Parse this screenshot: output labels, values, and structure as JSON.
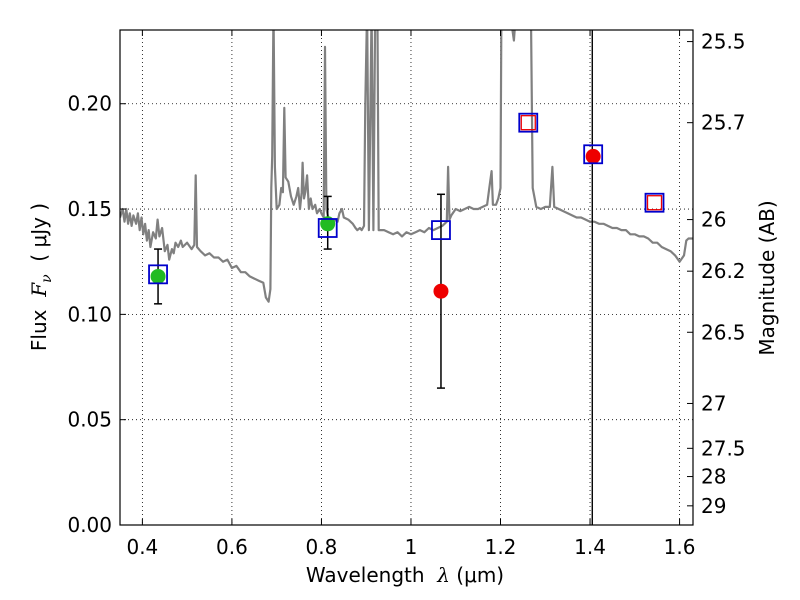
{
  "chart_data": {
    "type": "scatter",
    "xlabel": {
      "prefix": "Wavelength  ",
      "symbol": "λ",
      "unit": " (μm)"
    },
    "ylabel": {
      "prefix": "Flux  ",
      "symbol": "F",
      "sub": "ν",
      "unit": "  ( μJy )"
    },
    "ylabel_right": "Magnitude (AB)",
    "xlim": [
      0.35,
      1.63
    ],
    "ylim": [
      0.0,
      0.235
    ],
    "x_ticks": [
      0.4,
      0.6,
      0.8,
      1.0,
      1.2,
      1.4,
      1.6
    ],
    "x_tick_labels": [
      "0.4",
      "0.6",
      "0.8",
      "1",
      "1.2",
      "1.4",
      "1.6"
    ],
    "y_ticks": [
      0.0,
      0.05,
      0.1,
      0.15,
      0.2
    ],
    "y_tick_labels": [
      "0.00",
      "0.05",
      "0.10",
      "0.15",
      "0.20"
    ],
    "right_ticks": [
      {
        "label": "25.5",
        "flux": 0.2295
      },
      {
        "label": "25.7",
        "flux": 0.191
      },
      {
        "label": "26",
        "flux": 0.145
      },
      {
        "label": "26.2",
        "flux": 0.1205
      },
      {
        "label": "26.5",
        "flux": 0.0915
      },
      {
        "label": "27",
        "flux": 0.0577
      },
      {
        "label": "27.5",
        "flux": 0.0364
      },
      {
        "label": "28",
        "flux": 0.023
      },
      {
        "label": "29",
        "flux": 0.0091
      }
    ],
    "grid": true,
    "vline_x": 1.405,
    "observed_points": [
      {
        "x": 0.435,
        "y": 0.118,
        "yerr_low": 0.105,
        "yerr_high": 0.131,
        "color": "#22bb22"
      },
      {
        "x": 0.814,
        "y": 0.143,
        "yerr_low": 0.131,
        "yerr_high": 0.156,
        "color": "#22bb22"
      },
      {
        "x": 1.067,
        "y": 0.111,
        "yerr_low": 0.065,
        "yerr_high": 0.157,
        "color": "#ee0000"
      },
      {
        "x": 1.407,
        "y": 0.175,
        "color": "#ee0000"
      }
    ],
    "model_points": [
      {
        "x": 0.435,
        "y": 0.119
      },
      {
        "x": 0.814,
        "y": 0.141
      },
      {
        "x": 1.067,
        "y": 0.14
      },
      {
        "x": 1.262,
        "y": 0.191
      },
      {
        "x": 1.407,
        "y": 0.176
      },
      {
        "x": 1.544,
        "y": 0.153
      }
    ],
    "upper_limit_points": [
      {
        "x": 1.262,
        "y": 0.191
      },
      {
        "x": 1.544,
        "y": 0.153
      }
    ],
    "spectrum": {
      "color": "#808080",
      "points": [
        [
          0.35,
          0.146
        ],
        [
          0.356,
          0.15
        ],
        [
          0.36,
          0.144
        ],
        [
          0.364,
          0.15
        ],
        [
          0.368,
          0.143
        ],
        [
          0.372,
          0.148
        ],
        [
          0.376,
          0.142
        ],
        [
          0.38,
          0.147
        ],
        [
          0.386,
          0.143
        ],
        [
          0.39,
          0.148
        ],
        [
          0.394,
          0.14
        ],
        [
          0.398,
          0.146
        ],
        [
          0.402,
          0.138
        ],
        [
          0.406,
          0.143
        ],
        [
          0.41,
          0.135
        ],
        [
          0.414,
          0.14
        ],
        [
          0.418,
          0.132
        ],
        [
          0.424,
          0.139
        ],
        [
          0.43,
          0.136
        ],
        [
          0.434,
          0.145
        ],
        [
          0.438,
          0.137
        ],
        [
          0.444,
          0.141
        ],
        [
          0.45,
          0.13
        ],
        [
          0.456,
          0.133
        ],
        [
          0.46,
          0.126
        ],
        [
          0.466,
          0.131
        ],
        [
          0.47,
          0.129
        ],
        [
          0.474,
          0.134
        ],
        [
          0.48,
          0.132
        ],
        [
          0.486,
          0.135
        ],
        [
          0.49,
          0.132
        ],
        [
          0.5,
          0.134
        ],
        [
          0.51,
          0.131
        ],
        [
          0.516,
          0.133
        ],
        [
          0.519,
          0.166
        ],
        [
          0.522,
          0.132
        ],
        [
          0.53,
          0.13
        ],
        [
          0.54,
          0.128
        ],
        [
          0.55,
          0.129
        ],
        [
          0.56,
          0.127
        ],
        [
          0.57,
          0.127
        ],
        [
          0.58,
          0.125
        ],
        [
          0.59,
          0.126
        ],
        [
          0.6,
          0.122
        ],
        [
          0.61,
          0.123
        ],
        [
          0.62,
          0.12
        ],
        [
          0.63,
          0.12
        ],
        [
          0.64,
          0.118
        ],
        [
          0.65,
          0.117
        ],
        [
          0.66,
          0.116
        ],
        [
          0.67,
          0.115
        ],
        [
          0.676,
          0.108
        ],
        [
          0.682,
          0.106
        ],
        [
          0.686,
          0.112
        ],
        [
          0.688,
          0.16
        ],
        [
          0.69,
          0.175
        ],
        [
          0.693,
          0.245
        ],
        [
          0.696,
          0.17
        ],
        [
          0.7,
          0.15
        ],
        [
          0.706,
          0.152
        ],
        [
          0.71,
          0.16
        ],
        [
          0.714,
          0.158
        ],
        [
          0.717,
          0.198
        ],
        [
          0.72,
          0.165
        ],
        [
          0.726,
          0.163
        ],
        [
          0.732,
          0.156
        ],
        [
          0.738,
          0.152
        ],
        [
          0.744,
          0.156
        ],
        [
          0.748,
          0.16
        ],
        [
          0.752,
          0.15
        ],
        [
          0.756,
          0.158
        ],
        [
          0.758,
          0.172
        ],
        [
          0.761,
          0.155
        ],
        [
          0.764,
          0.158
        ],
        [
          0.768,
          0.166
        ],
        [
          0.772,
          0.15
        ],
        [
          0.776,
          0.155
        ],
        [
          0.78,
          0.15
        ],
        [
          0.786,
          0.152
        ],
        [
          0.79,
          0.148
        ],
        [
          0.796,
          0.15
        ],
        [
          0.8,
          0.148
        ],
        [
          0.805,
          0.146
        ],
        [
          0.808,
          0.227
        ],
        [
          0.811,
          0.15
        ],
        [
          0.815,
          0.146
        ],
        [
          0.82,
          0.143
        ],
        [
          0.83,
          0.145
        ],
        [
          0.836,
          0.144
        ],
        [
          0.84,
          0.148
        ],
        [
          0.846,
          0.15
        ],
        [
          0.85,
          0.146
        ],
        [
          0.86,
          0.145
        ],
        [
          0.87,
          0.143
        ],
        [
          0.876,
          0.141
        ],
        [
          0.88,
          0.14
        ],
        [
          0.886,
          0.141
        ],
        [
          0.89,
          0.14
        ],
        [
          0.895,
          0.142
        ],
        [
          0.898,
          0.2
        ],
        [
          0.902,
          0.245
        ],
        [
          0.906,
          0.14
        ],
        [
          0.912,
          0.245
        ],
        [
          0.916,
          0.14
        ],
        [
          0.92,
          0.245
        ],
        [
          0.925,
          0.245
        ],
        [
          0.928,
          0.14
        ],
        [
          0.934,
          0.14
        ],
        [
          0.94,
          0.14
        ],
        [
          0.95,
          0.139
        ],
        [
          0.96,
          0.138
        ],
        [
          0.97,
          0.139
        ],
        [
          0.98,
          0.137
        ],
        [
          0.99,
          0.139
        ],
        [
          1.0,
          0.138
        ],
        [
          1.01,
          0.139
        ],
        [
          1.02,
          0.14
        ],
        [
          1.03,
          0.139
        ],
        [
          1.04,
          0.141
        ],
        [
          1.05,
          0.14
        ],
        [
          1.06,
          0.141
        ],
        [
          1.07,
          0.142
        ],
        [
          1.08,
          0.144
        ],
        [
          1.083,
          0.17
        ],
        [
          1.086,
          0.145
        ],
        [
          1.09,
          0.147
        ],
        [
          1.1,
          0.15
        ],
        [
          1.11,
          0.149
        ],
        [
          1.12,
          0.15
        ],
        [
          1.13,
          0.151
        ],
        [
          1.14,
          0.15
        ],
        [
          1.15,
          0.15
        ],
        [
          1.16,
          0.151
        ],
        [
          1.17,
          0.152
        ],
        [
          1.175,
          0.16
        ],
        [
          1.18,
          0.168
        ],
        [
          1.183,
          0.152
        ],
        [
          1.19,
          0.152
        ],
        [
          1.195,
          0.155
        ],
        [
          1.2,
          0.16
        ],
        [
          1.202,
          0.245
        ],
        [
          1.212,
          0.245
        ],
        [
          1.22,
          0.245
        ],
        [
          1.23,
          0.23
        ],
        [
          1.235,
          0.245
        ],
        [
          1.26,
          0.245
        ],
        [
          1.268,
          0.245
        ],
        [
          1.272,
          0.16
        ],
        [
          1.28,
          0.151
        ],
        [
          1.29,
          0.15
        ],
        [
          1.3,
          0.151
        ],
        [
          1.31,
          0.151
        ],
        [
          1.316,
          0.17
        ],
        [
          1.32,
          0.151
        ],
        [
          1.33,
          0.15
        ],
        [
          1.34,
          0.149
        ],
        [
          1.35,
          0.148
        ],
        [
          1.36,
          0.147
        ],
        [
          1.37,
          0.146
        ],
        [
          1.38,
          0.146
        ],
        [
          1.39,
          0.145
        ],
        [
          1.4,
          0.144
        ],
        [
          1.41,
          0.144
        ],
        [
          1.42,
          0.143
        ],
        [
          1.43,
          0.143
        ],
        [
          1.44,
          0.142
        ],
        [
          1.45,
          0.141
        ],
        [
          1.46,
          0.141
        ],
        [
          1.47,
          0.14
        ],
        [
          1.48,
          0.14
        ],
        [
          1.49,
          0.138
        ],
        [
          1.5,
          0.138
        ],
        [
          1.51,
          0.137
        ],
        [
          1.52,
          0.137
        ],
        [
          1.53,
          0.136
        ],
        [
          1.54,
          0.134
        ],
        [
          1.55,
          0.134
        ],
        [
          1.56,
          0.132
        ],
        [
          1.57,
          0.131
        ],
        [
          1.58,
          0.13
        ],
        [
          1.59,
          0.128
        ],
        [
          1.6,
          0.125
        ],
        [
          1.61,
          0.128
        ],
        [
          1.615,
          0.135
        ],
        [
          1.62,
          0.136
        ],
        [
          1.63,
          0.136
        ]
      ]
    }
  }
}
